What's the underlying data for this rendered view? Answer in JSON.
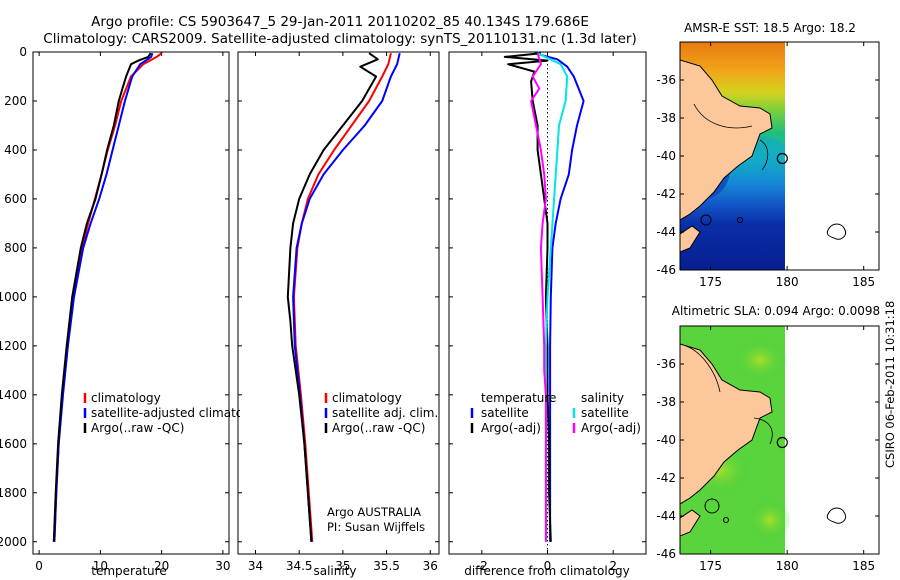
{
  "header": {
    "title_line1": "Argo profile: CS 5903647_5 29-Jan-2011 20110202_85 40.134S 179.686E",
    "title_line2": "Climatology: CARS2009. Satellite-adjusted climatology: synTS_20110131.nc (1.3d later)"
  },
  "credits": {
    "argo": "Argo AUSTRALIA",
    "pi": "PI: Susan Wijffels",
    "stamp": "CSIRO 06-Feb-2011 10:31:18"
  },
  "colors": {
    "climatology": "#ff0000",
    "satellite": "#0000ff",
    "argo": "#000000",
    "salinity_satellite": "#00e5e5",
    "salinity_argo": "#ff00ff",
    "land": "#fcc79a"
  },
  "chart_data": [
    {
      "type": "line",
      "xlabel": "temperature",
      "xlim": [
        -1,
        31
      ],
      "xticks": [
        0,
        10,
        20,
        30
      ],
      "ylim": [
        2050,
        0
      ],
      "yticks": [
        0,
        200,
        400,
        600,
        800,
        1000,
        1200,
        1400,
        1600,
        1800,
        2000
      ],
      "series": [
        {
          "name": "climatology",
          "color": "#ff0000",
          "y": [
            5,
            20,
            50,
            100,
            150,
            200,
            300,
            400,
            500,
            600,
            700,
            800,
            1000,
            1200,
            1400,
            1600,
            1800,
            2000
          ],
          "x": [
            20.0,
            19.2,
            17.0,
            15.0,
            14.2,
            13.4,
            12.4,
            11.2,
            10.2,
            9.1,
            8.0,
            7.0,
            5.6,
            4.6,
            3.8,
            3.2,
            2.8,
            2.5
          ]
        },
        {
          "name": "satellite-adjusted climatology",
          "color": "#0000ff",
          "y": [
            5,
            20,
            50,
            100,
            150,
            200,
            300,
            400,
            500,
            600,
            700,
            800,
            1000,
            1200,
            1400,
            1600,
            1800,
            2000
          ],
          "x": [
            18.5,
            18.3,
            16.5,
            15.2,
            14.6,
            14.0,
            13.0,
            12.0,
            11.0,
            9.8,
            8.4,
            7.2,
            5.7,
            4.7,
            3.9,
            3.2,
            2.8,
            2.5
          ]
        },
        {
          "name": "Argo(..raw -QC)",
          "color": "#000000",
          "y": [
            5,
            20,
            35,
            50,
            100,
            150,
            200,
            300,
            400,
            500,
            600,
            700,
            800,
            1000,
            1200,
            1400,
            1600,
            1800,
            2000
          ],
          "x": [
            18.2,
            17.8,
            16.2,
            15.0,
            14.2,
            13.6,
            13.0,
            12.2,
            11.1,
            10.2,
            9.2,
            7.8,
            6.8,
            5.4,
            4.5,
            3.7,
            3.1,
            2.7,
            2.4
          ]
        }
      ],
      "legend": [
        "climatology",
        "satellite-adjusted climatology",
        "Argo(..raw -QC)"
      ],
      "legend_position": "lower-right"
    },
    {
      "type": "line",
      "xlabel": "salinity",
      "xlim": [
        33.8,
        36.1
      ],
      "xticks": [
        34,
        34.5,
        35,
        35.5,
        36
      ],
      "ylim": [
        2050,
        0
      ],
      "series": [
        {
          "name": "climatology",
          "color": "#ff0000",
          "y": [
            5,
            50,
            100,
            200,
            300,
            400,
            500,
            600,
            700,
            800,
            1000,
            1200,
            1400,
            1600,
            1800,
            2000
          ],
          "x": [
            35.55,
            35.52,
            35.45,
            35.3,
            35.1,
            34.9,
            34.72,
            34.6,
            34.53,
            34.48,
            34.44,
            34.46,
            34.52,
            34.57,
            34.61,
            34.65
          ]
        },
        {
          "name": "satellite adj. clim.",
          "color": "#0000ff",
          "y": [
            5,
            50,
            100,
            200,
            300,
            400,
            500,
            600,
            700,
            800,
            1000,
            1200,
            1400,
            1600,
            1800,
            2000
          ],
          "x": [
            35.65,
            35.62,
            35.55,
            35.45,
            35.25,
            35.0,
            34.78,
            34.62,
            34.53,
            34.47,
            34.43,
            34.45,
            34.51,
            34.56,
            34.6,
            34.64
          ]
        },
        {
          "name": "Argo(..raw -QC)",
          "color": "#000000",
          "y": [
            5,
            30,
            60,
            100,
            200,
            300,
            400,
            500,
            600,
            700,
            800,
            1000,
            1100,
            1200,
            1400,
            1600,
            1800,
            2000
          ],
          "x": [
            35.3,
            35.4,
            35.2,
            35.38,
            35.22,
            35.0,
            34.78,
            34.62,
            34.5,
            34.43,
            34.4,
            34.37,
            34.4,
            34.42,
            34.5,
            34.56,
            34.6,
            34.64
          ]
        }
      ],
      "legend": [
        "climatology",
        "satellite adj. clim.",
        "Argo(..raw -QC)"
      ],
      "legend_position": "lower-right"
    },
    {
      "type": "line",
      "xlabel": "difference from climatology",
      "xlim": [
        -3,
        3
      ],
      "xticks": [
        -2,
        0,
        2
      ],
      "ylim": [
        2050,
        0
      ],
      "reference_line_x": 0,
      "series": [
        {
          "name": "temperature satellite",
          "color": "#0000ff",
          "y": [
            5,
            30,
            60,
            100,
            200,
            300,
            400,
            500,
            600,
            700,
            800,
            1000,
            1200,
            1400,
            1600,
            1800,
            2000
          ],
          "x": [
            -0.4,
            0.3,
            0.6,
            0.8,
            1.1,
            0.9,
            0.75,
            0.65,
            0.4,
            0.25,
            0.15,
            0.1,
            0.08,
            0.08,
            0.08,
            0.08,
            0.08
          ]
        },
        {
          "name": "temperature Argo(-adj)",
          "color": "#000000",
          "y": [
            5,
            20,
            35,
            50,
            80,
            120,
            200,
            300,
            400,
            500,
            600,
            700,
            800,
            1000,
            1200,
            1400,
            1600,
            1800,
            2000
          ],
          "x": [
            -0.2,
            -1.3,
            0.0,
            -1.2,
            -0.4,
            -0.5,
            -0.45,
            -0.3,
            -0.3,
            -0.2,
            -0.1,
            0.0,
            0.0,
            -0.05,
            0.0,
            0.0,
            0.05,
            0.05,
            0.1
          ]
        },
        {
          "name": "salinity satellite",
          "color": "#00e5e5",
          "y": [
            5,
            50,
            100,
            200,
            300,
            400,
            600,
            800,
            1000,
            1200,
            1400,
            1600,
            1800,
            2000
          ],
          "x": [
            -0.3,
            0.4,
            0.6,
            0.55,
            0.35,
            0.3,
            0.2,
            0.1,
            0.0,
            -0.05,
            -0.05,
            -0.05,
            -0.05,
            -0.05
          ]
        },
        {
          "name": "salinity Argo(-adj)",
          "color": "#ff00ff",
          "y": [
            5,
            50,
            100,
            150,
            200,
            300,
            400,
            500,
            600,
            700,
            800,
            1000,
            1200,
            1300,
            1400,
            1600,
            1800,
            2000
          ],
          "x": [
            -0.3,
            -0.2,
            -0.45,
            -0.25,
            -0.5,
            -0.35,
            -0.2,
            -0.1,
            -0.05,
            -0.15,
            -0.2,
            -0.15,
            -0.1,
            -0.1,
            -0.05,
            -0.05,
            -0.05,
            -0.05
          ]
        }
      ],
      "legend_groups": [
        {
          "title": "temperature",
          "items": [
            "satellite",
            "Argo(-adj)"
          ],
          "colors": [
            "#0000ff",
            "#000000"
          ]
        },
        {
          "title": "salinity",
          "items": [
            "satellite",
            "Argo(-adj)"
          ],
          "colors": [
            "#00e5e5",
            "#ff00ff"
          ]
        }
      ],
      "legend_position": "lower-center"
    },
    {
      "type": "heatmap",
      "title": "AMSR-E SST: 18.5 Argo: 18.2",
      "xlim": [
        173,
        186
      ],
      "xticks": [
        175,
        180,
        185
      ],
      "ylim": [
        -46,
        -34
      ],
      "yticks": [
        -36,
        -38,
        -40,
        -42,
        -44,
        -46
      ],
      "data_extent_lon": [
        173,
        180
      ],
      "argo_position": {
        "lon": 179.686,
        "lat": -40.134
      }
    },
    {
      "type": "heatmap",
      "title": "Altimetric SLA: 0.094 Argo: 0.0098",
      "xlim": [
        173,
        186
      ],
      "xticks": [
        175,
        180,
        185
      ],
      "ylim": [
        -46,
        -34
      ],
      "yticks": [
        -36,
        -38,
        -40,
        -42,
        -44,
        -46
      ],
      "data_extent_lon": [
        173,
        180
      ],
      "argo_position": {
        "lon": 179.686,
        "lat": -40.134
      }
    }
  ]
}
